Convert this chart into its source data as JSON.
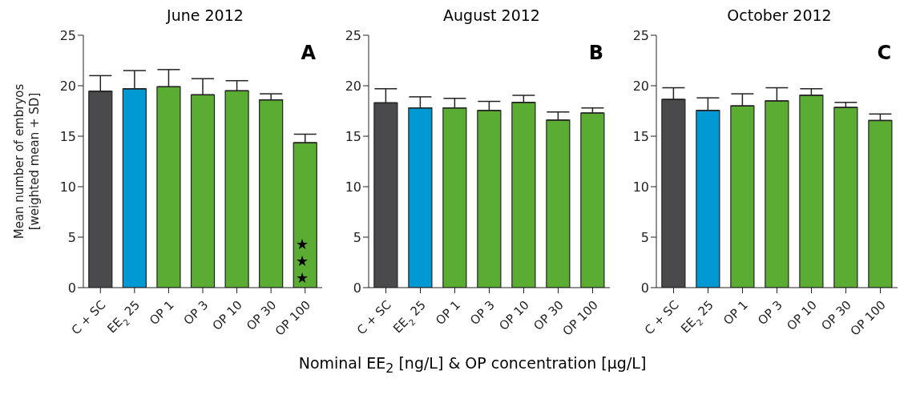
{
  "chart_data": [
    {
      "type": "bar",
      "title": "June 2012",
      "ylabel": "Mean number of embryos\n[weighted mean + SD]",
      "categories": [
        "C + SC",
        "EE$_{2}$ 25",
        "OP 1",
        "OP 3",
        "OP 10",
        "OP 30",
        "OP 100"
      ],
      "values": [
        19.45,
        19.7,
        19.9,
        19.1,
        19.5,
        18.6,
        14.35
      ],
      "errors": [
        [
          19.45,
          21.0
        ],
        [
          19.7,
          21.5
        ],
        [
          19.9,
          21.6
        ],
        [
          19.1,
          20.7
        ],
        [
          19.5,
          20.5
        ],
        [
          18.6,
          19.2
        ],
        [
          14.35,
          15.2
        ]
      ],
      "colors": [
        "#4a4a4c",
        "#0099d4",
        "#5aac33",
        "#5aac33",
        "#5aac33",
        "#5aac33",
        "#5aac33"
      ],
      "ylim": [
        0,
        25
      ],
      "yticks": [
        0,
        5,
        10,
        15,
        20,
        25
      ],
      "grid": false,
      "legend": false,
      "annotations": [
        "A",
        "★★★"
      ]
    },
    {
      "type": "bar",
      "title": "August 2012",
      "xlabel": "Nominal EE$_{2}$ [ng/L] & OP concentration [µg/L]",
      "categories": [
        "C + SC",
        "EE$_{2}$ 25",
        "OP 1",
        "OP 3",
        "OP 10",
        "OP 30",
        "OP 100"
      ],
      "values": [
        18.3,
        17.8,
        17.8,
        17.55,
        18.35,
        16.6,
        17.3
      ],
      "errors": [
        [
          18.3,
          19.7
        ],
        [
          17.8,
          18.9
        ],
        [
          17.8,
          18.75
        ],
        [
          17.55,
          18.45
        ],
        [
          18.35,
          19.05
        ],
        [
          16.6,
          17.4
        ],
        [
          17.3,
          17.8
        ]
      ],
      "colors": [
        "#4a4a4c",
        "#0099d4",
        "#5aac33",
        "#5aac33",
        "#5aac33",
        "#5aac33",
        "#5aac33"
      ],
      "ylim": [
        0,
        25
      ],
      "yticks": [
        0,
        5,
        10,
        15,
        20,
        25
      ],
      "grid": false,
      "legend": false,
      "annotations": [
        "B"
      ]
    },
    {
      "type": "bar",
      "title": "October 2012",
      "categories": [
        "C + SC",
        "EE$_{2}$ 25",
        "OP 1",
        "OP 3",
        "OP 10",
        "OP 30",
        "OP 100"
      ],
      "values": [
        18.65,
        17.55,
        18.0,
        18.5,
        19.05,
        17.85,
        16.55
      ],
      "errors": [
        [
          18.65,
          19.8
        ],
        [
          17.55,
          18.8
        ],
        [
          18.0,
          19.2
        ],
        [
          18.5,
          19.8
        ],
        [
          19.05,
          19.7
        ],
        [
          17.85,
          18.35
        ],
        [
          16.55,
          17.2
        ]
      ],
      "colors": [
        "#4a4a4c",
        "#0099d4",
        "#5aac33",
        "#5aac33",
        "#5aac33",
        "#5aac33",
        "#5aac33"
      ],
      "ylim": [
        0,
        25
      ],
      "yticks": [
        0,
        5,
        10,
        15,
        20,
        25
      ],
      "grid": false,
      "legend": false,
      "annotations": [
        "C"
      ]
    }
  ]
}
